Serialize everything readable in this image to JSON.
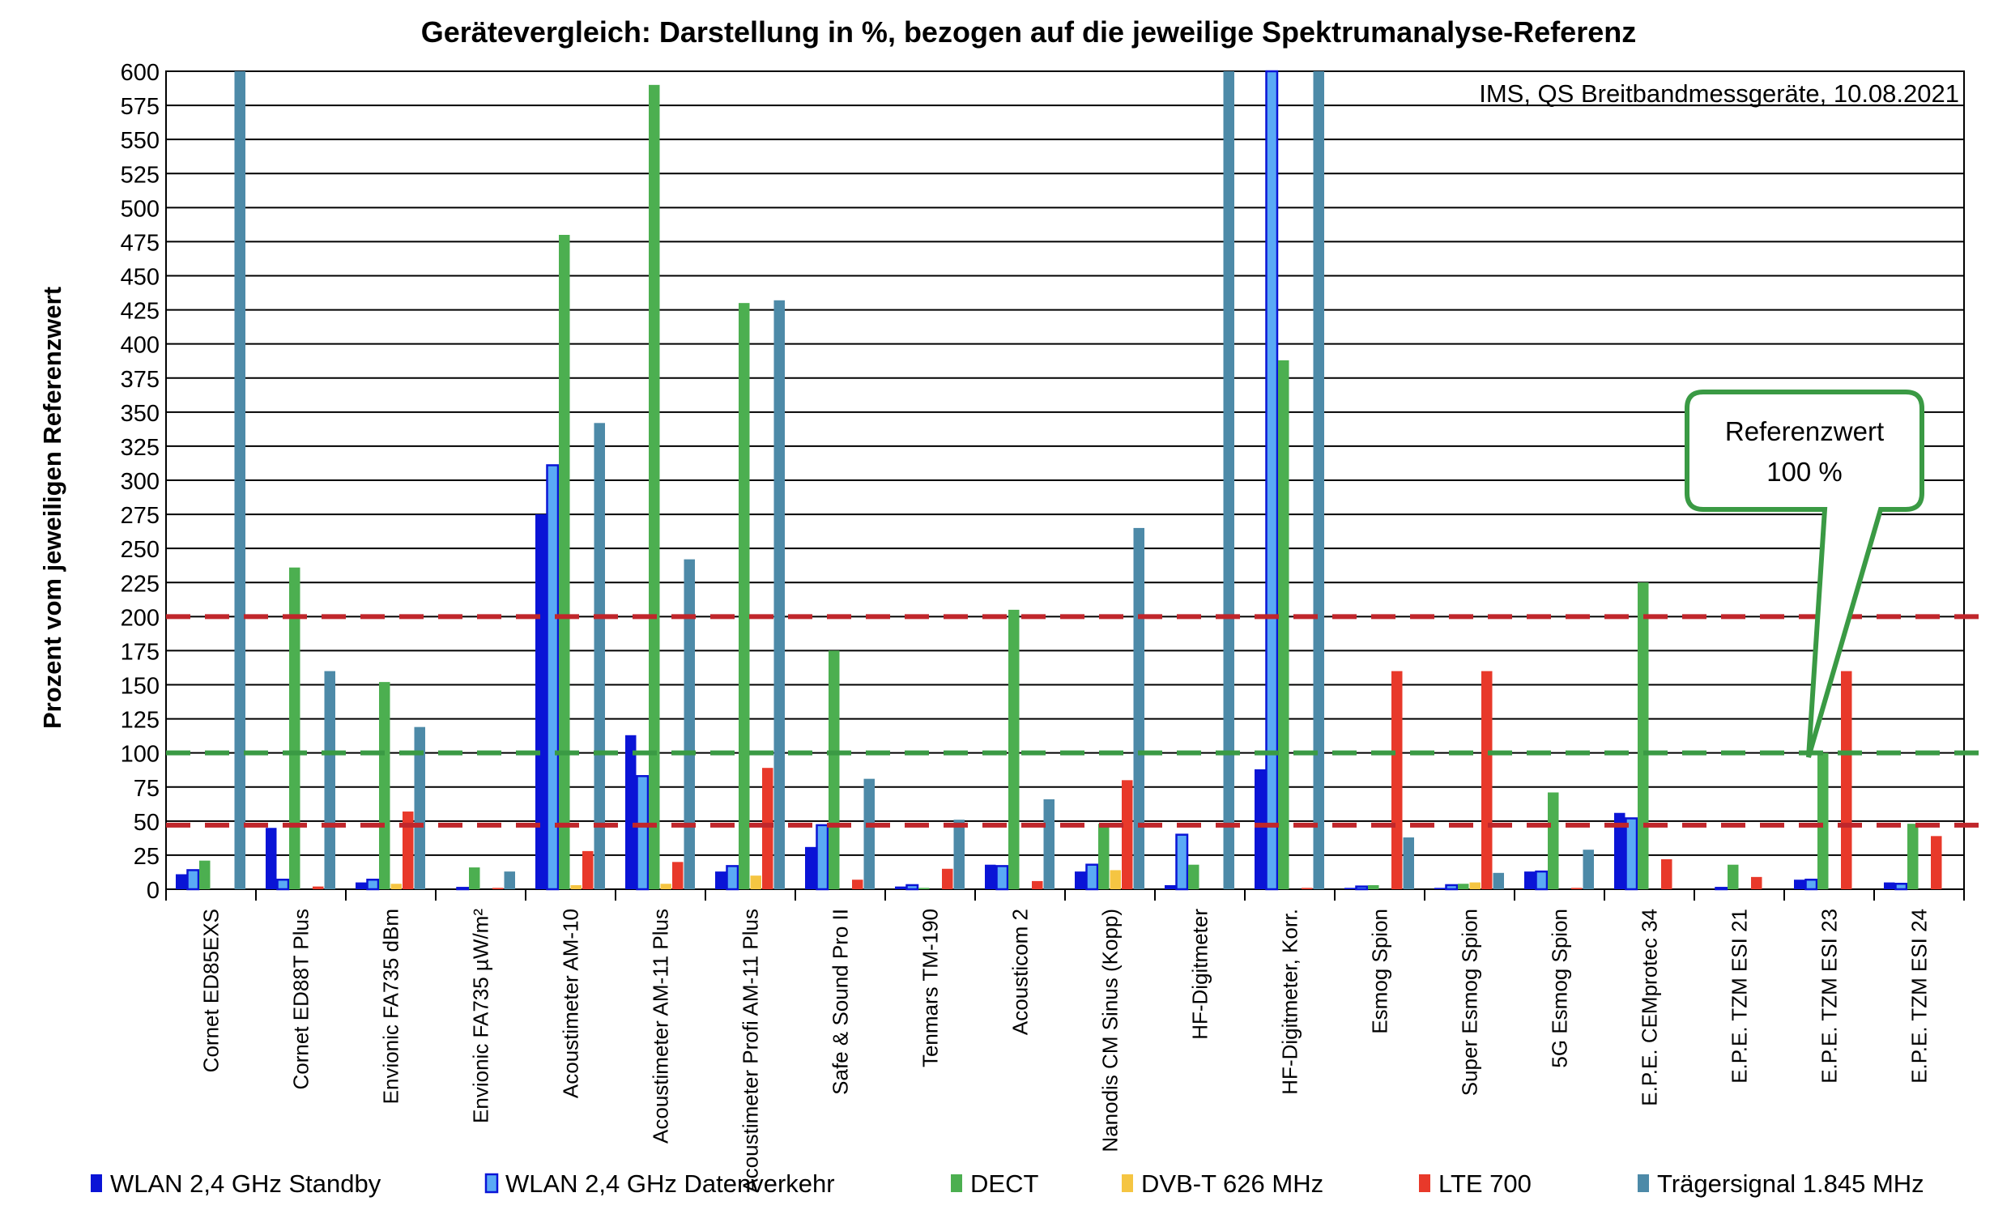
{
  "chart_data": {
    "type": "bar",
    "title": "Gerätevergleich: Darstellung in %, bezogen auf die jeweilige Spektrumanalyse-Referenz",
    "annotation": "IMS, QS Breitbandmessgeräte, 10.08.2021",
    "xlabel": "",
    "ylabel": "Prozent vom jeweiligen Referenzwert",
    "ylim": [
      0,
      600
    ],
    "ytick_step": 25,
    "grid": true,
    "legend_position": "bottom",
    "categories": [
      "Cornet ED85EXS",
      "Cornet ED88T Plus",
      "Envionic FA735 dBm",
      "Envionic FA735 µW/m²",
      "Acoustimeter AM-10",
      "Acoustimeter AM-11 Plus",
      "Acoustimeter Profi AM-11 Plus",
      "Safe & Sound Pro II",
      "Tenmars TM-190",
      "Acousticom 2",
      "Nanodis CM Sinus (Kopp)",
      "HF-Digitmeter",
      "HF-Digitmeter, Korr.",
      "Esmog Spion",
      "Super Esmog Spion",
      "5G Esmog Spion",
      "E.P.E. CEMprotec 34",
      "E.P.E. TZM ESI 21",
      "E.P.E. TZM ESI 23",
      "E.P.E. TZM ESI 24"
    ],
    "series": [
      {
        "name": "WLAN 2,4 GHz Standby",
        "color": "#0a14d6",
        "hollow": false,
        "values": [
          11,
          45,
          5,
          0,
          275,
          113,
          13,
          31,
          2,
          18,
          13,
          3,
          88,
          1,
          1,
          13,
          56,
          0,
          7,
          5
        ]
      },
      {
        "name": "WLAN 2,4 GHz Datenverkehr",
        "color": "#5aaaf5",
        "hollow": true,
        "values": [
          14,
          7,
          7,
          1,
          311,
          83,
          17,
          47,
          3,
          17,
          18,
          40,
          600,
          2,
          3,
          13,
          52,
          1,
          7,
          4
        ]
      },
      {
        "name": "DECT",
        "color": "#4caf50",
        "hollow": false,
        "values": [
          21,
          236,
          152,
          16,
          480,
          590,
          430,
          175,
          1,
          205,
          48,
          18,
          388,
          3,
          4,
          71,
          225,
          18,
          100,
          48
        ]
      },
      {
        "name": "DVB-T 626 MHz",
        "color": "#f5c542",
        "hollow": false,
        "values": [
          0,
          0,
          4,
          0,
          3,
          4,
          10,
          0,
          0,
          0,
          14,
          0,
          0,
          0,
          5,
          0,
          0,
          0,
          0,
          0
        ]
      },
      {
        "name": "LTE 700",
        "color": "#e8392a",
        "hollow": false,
        "values": [
          0,
          2,
          57,
          1,
          28,
          20,
          89,
          7,
          15,
          6,
          80,
          0,
          1,
          160,
          160,
          1,
          22,
          9,
          160,
          39
        ]
      },
      {
        "name": "Trägersignal 1.845 MHz",
        "color": "#4d8aa8",
        "hollow": false,
        "values": [
          600,
          160,
          119,
          13,
          342,
          242,
          432,
          81,
          51,
          66,
          265,
          600,
          600,
          38,
          12,
          29,
          0,
          0,
          0,
          0
        ]
      }
    ],
    "reference_lines": [
      {
        "value": 200,
        "color": "#c0262b"
      },
      {
        "value": 100,
        "color": "#3a9a44"
      },
      {
        "value": 47,
        "color": "#c0262b"
      }
    ],
    "callout": {
      "line1": "Referenzwert",
      "line2": "100 %",
      "border_color": "#3a9a44"
    }
  }
}
